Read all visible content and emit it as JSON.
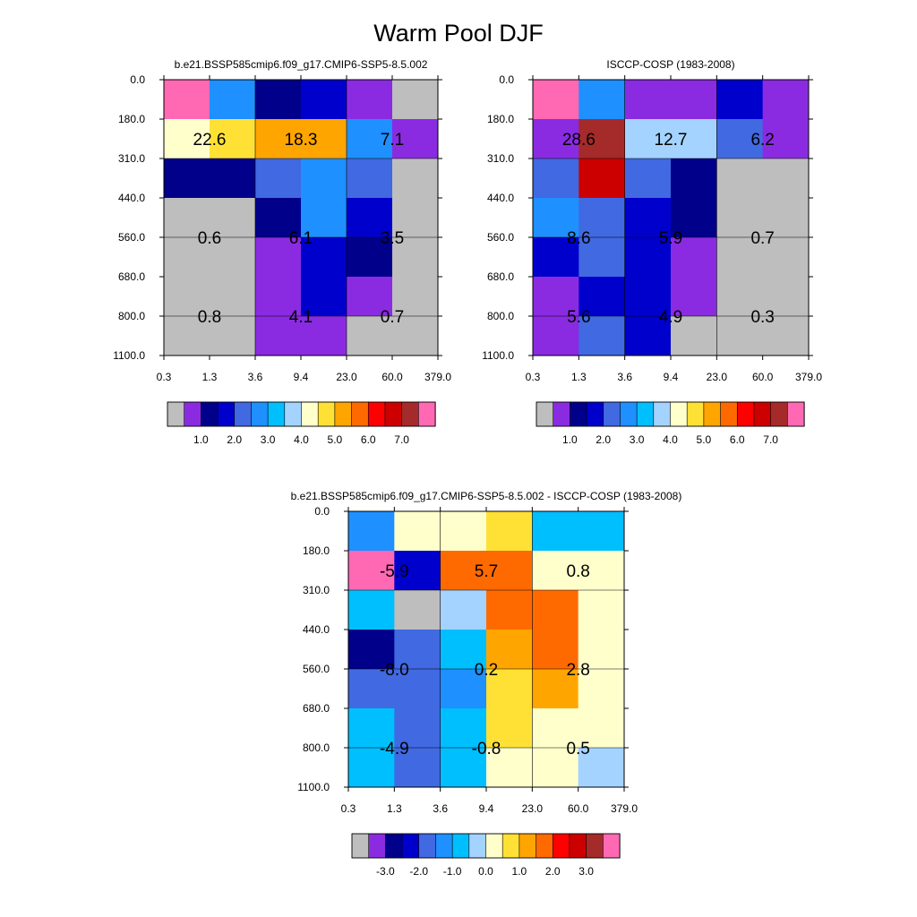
{
  "title": "Warm Pool DJF",
  "colors": {
    "main": [
      "#bebebe",
      "#8a2be2",
      "#00008b",
      "#0000cd",
      "#4169e1",
      "#1e90ff",
      "#00bfff",
      "#a4d3ff",
      "#ffffcc",
      "#ffe135",
      "#ffa500",
      "#ff6a00",
      "#ff0000",
      "#cd0000",
      "#a52a2a",
      "#ff69b4"
    ],
    "diff": [
      "#bebebe",
      "#8a2be2",
      "#00008b",
      "#0000cd",
      "#4169e1",
      "#1e90ff",
      "#00bfff",
      "#a4d3ff",
      "#ffffcc",
      "#ffe135",
      "#ffa500",
      "#ff6a00",
      "#ff0000",
      "#cd0000",
      "#a52a2a",
      "#ff69b4"
    ]
  },
  "chart_data": [
    {
      "type": "heatmap",
      "title": "b.e21.BSSP585cmip6.f09_g17.CMIP6-SSP5-8.5.002",
      "x_ticks": [
        "0.3",
        "1.3",
        "3.6",
        "9.4",
        "23.0",
        "60.0",
        "379.0"
      ],
      "y_ticks": [
        "0.0",
        "180.0",
        "310.0",
        "440.0",
        "560.0",
        "680.0",
        "800.0",
        "1100.0"
      ],
      "cells": [
        [
          15,
          5,
          2,
          3,
          1,
          0
        ],
        [
          8,
          9,
          10,
          10,
          5,
          1
        ],
        [
          2,
          2,
          4,
          5,
          4,
          0
        ],
        [
          0,
          0,
          2,
          5,
          3,
          0
        ],
        [
          0,
          0,
          1,
          3,
          2,
          0
        ],
        [
          0,
          0,
          1,
          3,
          1,
          0
        ],
        [
          0,
          0,
          1,
          1,
          0,
          0
        ]
      ],
      "labels": [
        {
          "row": 1.5,
          "col": 1,
          "text": "22.6"
        },
        {
          "row": 1.5,
          "col": 3,
          "text": "18.3"
        },
        {
          "row": 1.5,
          "col": 5,
          "text": "7.1"
        },
        {
          "row": 4,
          "col": 1,
          "text": "0.6"
        },
        {
          "row": 4,
          "col": 3,
          "text": "6.1"
        },
        {
          "row": 4,
          "col": 5,
          "text": "3.5"
        },
        {
          "row": 6,
          "col": 1,
          "text": "0.8"
        },
        {
          "row": 6,
          "col": 3,
          "text": "4.1"
        },
        {
          "row": 6,
          "col": 5,
          "text": "0.7"
        }
      ],
      "colorbar_labels": [
        "1.0",
        "2.0",
        "3.0",
        "4.0",
        "5.0",
        "6.0",
        "7.0"
      ]
    },
    {
      "type": "heatmap",
      "title": "ISCCP-COSP (1983-2008)",
      "x_ticks": [
        "0.3",
        "1.3",
        "3.6",
        "9.4",
        "23.0",
        "60.0",
        "379.0"
      ],
      "y_ticks": [
        "0.0",
        "180.0",
        "310.0",
        "440.0",
        "560.0",
        "680.0",
        "800.0",
        "1100.0"
      ],
      "cells": [
        [
          15,
          5,
          1,
          1,
          3,
          1
        ],
        [
          1,
          14,
          7,
          7,
          4,
          1
        ],
        [
          4,
          13,
          4,
          2,
          0,
          0
        ],
        [
          5,
          4,
          3,
          2,
          0,
          0
        ],
        [
          3,
          4,
          3,
          1,
          0,
          0
        ],
        [
          1,
          3,
          3,
          1,
          0,
          0
        ],
        [
          1,
          4,
          3,
          0,
          0,
          0
        ]
      ],
      "labels": [
        {
          "row": 1.5,
          "col": 1,
          "text": "28.6"
        },
        {
          "row": 1.5,
          "col": 3,
          "text": "12.7"
        },
        {
          "row": 1.5,
          "col": 5,
          "text": "6.2"
        },
        {
          "row": 4,
          "col": 1,
          "text": "8.6"
        },
        {
          "row": 4,
          "col": 3,
          "text": "5.9"
        },
        {
          "row": 4,
          "col": 5,
          "text": "0.7"
        },
        {
          "row": 6,
          "col": 1,
          "text": "5.6"
        },
        {
          "row": 6,
          "col": 3,
          "text": "4.9"
        },
        {
          "row": 6,
          "col": 5,
          "text": "0.3"
        }
      ],
      "colorbar_labels": [
        "1.0",
        "2.0",
        "3.0",
        "4.0",
        "5.0",
        "6.0",
        "7.0"
      ]
    },
    {
      "type": "heatmap",
      "title": "b.e21.BSSP585cmip6.f09_g17.CMIP6-SSP5-8.5.002 - ISCCP-COSP (1983-2008)",
      "x_ticks": [
        "0.3",
        "1.3",
        "3.6",
        "9.4",
        "23.0",
        "60.0",
        "379.0"
      ],
      "y_ticks": [
        "0.0",
        "180.0",
        "310.0",
        "440.0",
        "560.0",
        "680.0",
        "800.0",
        "1100.0"
      ],
      "cells": [
        [
          5,
          8,
          8,
          9,
          6,
          6
        ],
        [
          15,
          3,
          11,
          11,
          8,
          8
        ],
        [
          6,
          0,
          7,
          11,
          11,
          8
        ],
        [
          2,
          4,
          6,
          10,
          11,
          8
        ],
        [
          4,
          4,
          5,
          9,
          10,
          8
        ],
        [
          6,
          4,
          6,
          9,
          8,
          8
        ],
        [
          6,
          4,
          6,
          8,
          8,
          7
        ]
      ],
      "labels": [
        {
          "row": 1.5,
          "col": 1,
          "text": "-5.9"
        },
        {
          "row": 1.5,
          "col": 3,
          "text": "5.7"
        },
        {
          "row": 1.5,
          "col": 5,
          "text": "0.8"
        },
        {
          "row": 4,
          "col": 1,
          "text": "-8.0"
        },
        {
          "row": 4,
          "col": 3,
          "text": "0.2"
        },
        {
          "row": 4,
          "col": 5,
          "text": "2.8"
        },
        {
          "row": 6,
          "col": 1,
          "text": "-4.9"
        },
        {
          "row": 6,
          "col": 3,
          "text": "-0.8"
        },
        {
          "row": 6,
          "col": 5,
          "text": "0.5"
        }
      ],
      "colorbar_labels": [
        "-3.0",
        "-2.0",
        "-1.0",
        "0.0",
        "1.0",
        "2.0",
        "3.0"
      ]
    }
  ]
}
